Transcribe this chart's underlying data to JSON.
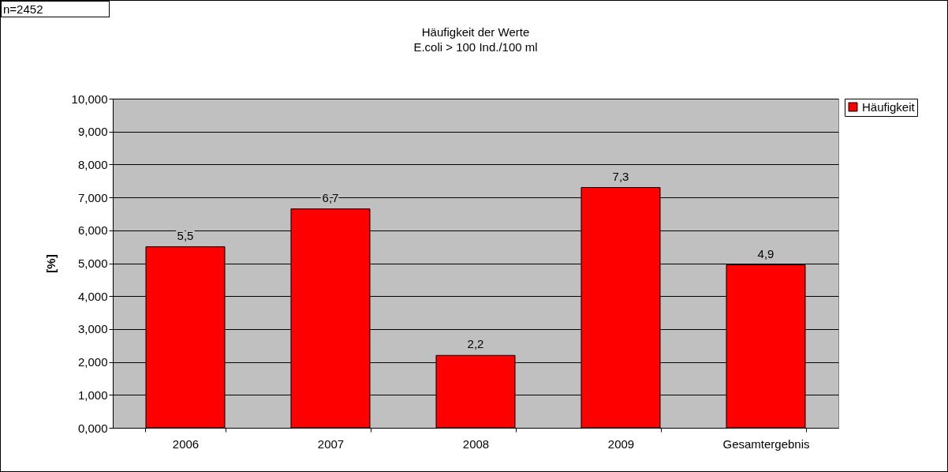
{
  "chart_data": {
    "type": "bar",
    "title": "Häufigkeit der Werte",
    "subtitle": "E.coli > 100 Ind./100 ml",
    "ylabel": "[%]",
    "categories": [
      "2006",
      "2007",
      "2008",
      "2009",
      "Gesamtergebnis"
    ],
    "series": [
      {
        "name": "Häufigkeit",
        "color": "#ff0000",
        "values": [
          5.5,
          6.65,
          2.2,
          7.3,
          4.95
        ],
        "value_labels": [
          "5,5",
          "6,7",
          "2,2",
          "7,3",
          "4,9"
        ]
      }
    ],
    "ylim": [
      0,
      10
    ],
    "yticks": [
      {
        "value": 0,
        "label": "0,000"
      },
      {
        "value": 1,
        "label": "1,000"
      },
      {
        "value": 2,
        "label": "2,000"
      },
      {
        "value": 3,
        "label": "3,000"
      },
      {
        "value": 4,
        "label": "4,000"
      },
      {
        "value": 5,
        "label": "5,000"
      },
      {
        "value": 6,
        "label": "6,000"
      },
      {
        "value": 7,
        "label": "7,000"
      },
      {
        "value": 8,
        "label": "8,000"
      },
      {
        "value": 9,
        "label": "9,000"
      },
      {
        "value": 10,
        "label": "10,000"
      }
    ],
    "grid": "y",
    "legend": "top right",
    "annotations": [
      "n=2452"
    ]
  }
}
